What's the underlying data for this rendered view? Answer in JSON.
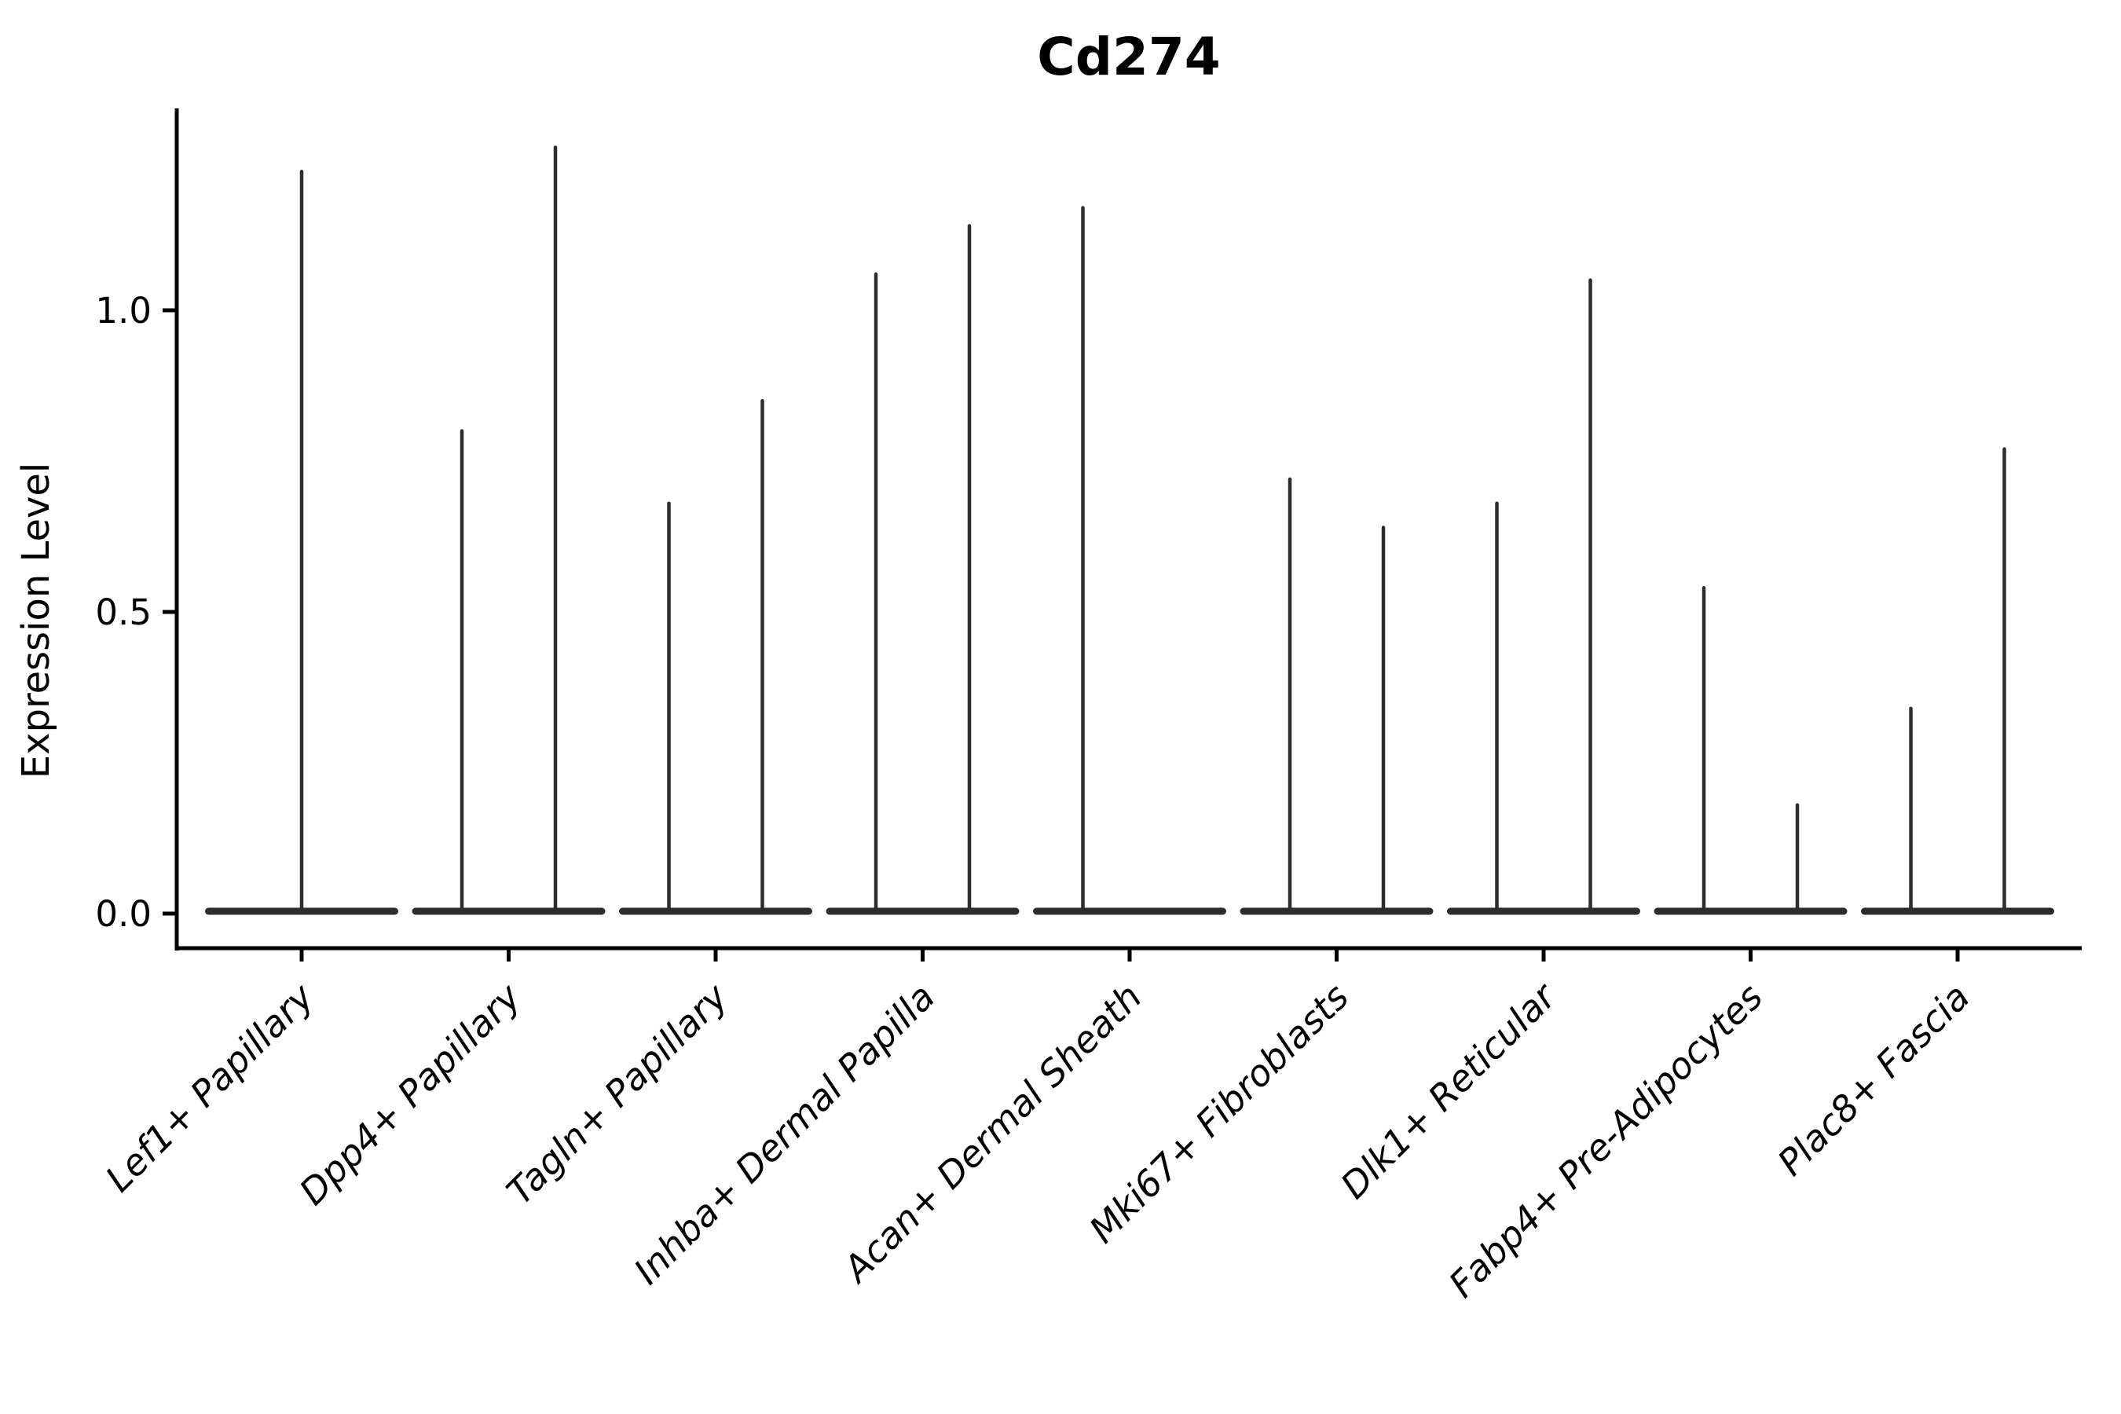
{
  "chart_data": {
    "type": "violin",
    "title": "Cd274",
    "xlabel": "",
    "ylabel": "Expression Level",
    "yticks": [
      0.0,
      0.5,
      1.0
    ],
    "ytick_labels": [
      "0.0",
      "0.5",
      "1.0"
    ],
    "ylim": [
      -0.06,
      1.33
    ],
    "grid": false,
    "legend": "none",
    "categories": [
      "Lef1+ Papillary",
      "Dpp4+ Papillary",
      "Tagln+ Papillary",
      "Inhba+ Dermal Papilla",
      "Acan+ Dermal Sheath",
      "Mki67+ Fibroblasts",
      "Dlk1+ Reticular",
      "Fabp4+ Pre-Adipocytes",
      "Plac8+ Fascia"
    ],
    "violins": [
      {
        "category": "Lef1+ Papillary",
        "spikes": [
          {
            "position": "center",
            "max": 1.23
          }
        ]
      },
      {
        "category": "Dpp4+ Papillary",
        "spikes": [
          {
            "position": "left",
            "max": 0.8
          },
          {
            "position": "right",
            "max": 1.27
          }
        ]
      },
      {
        "category": "Tagln+ Papillary",
        "spikes": [
          {
            "position": "left",
            "max": 0.68
          },
          {
            "position": "right",
            "max": 0.85
          }
        ]
      },
      {
        "category": "Inhba+ Dermal Papilla",
        "spikes": [
          {
            "position": "left",
            "max": 1.06
          },
          {
            "position": "right",
            "max": 1.14
          }
        ]
      },
      {
        "category": "Acan+ Dermal Sheath",
        "spikes": [
          {
            "position": "left",
            "max": 1.17
          }
        ]
      },
      {
        "category": "Mki67+ Fibroblasts",
        "spikes": [
          {
            "position": "left",
            "max": 0.72
          },
          {
            "position": "right",
            "max": 0.64
          }
        ]
      },
      {
        "category": "Dlk1+ Reticular",
        "spikes": [
          {
            "position": "left",
            "max": 0.68
          },
          {
            "position": "right",
            "max": 1.05
          }
        ]
      },
      {
        "category": "Fabp4+ Pre-Adipocytes",
        "spikes": [
          {
            "position": "left",
            "max": 0.54
          },
          {
            "position": "right",
            "max": 0.18
          }
        ]
      },
      {
        "category": "Plac8+ Fascia",
        "spikes": [
          {
            "position": "left",
            "max": 0.34
          },
          {
            "position": "right",
            "max": 0.77
          }
        ]
      }
    ],
    "baseline_value": 0.0,
    "colors": {
      "violin_line": "#2d2d2d",
      "spine": "#000000",
      "text": "#000000",
      "background": "#ffffff"
    }
  }
}
